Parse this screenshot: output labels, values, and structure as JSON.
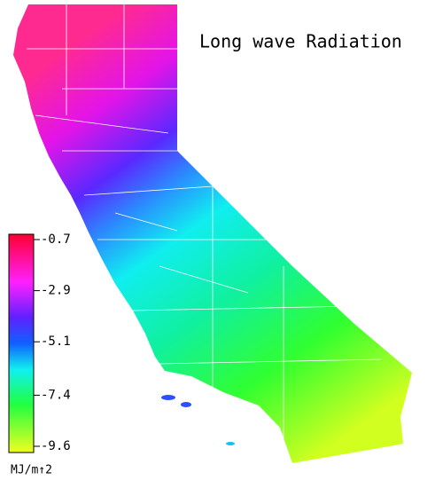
{
  "title": "Long wave Radiation",
  "colorbar": {
    "lim": [
      -0.7,
      -9.6
    ],
    "ticks": [
      -0.7,
      -2.9,
      -5.1,
      -7.4,
      -9.6
    ],
    "unit": "MJ/m↑2"
  }
}
